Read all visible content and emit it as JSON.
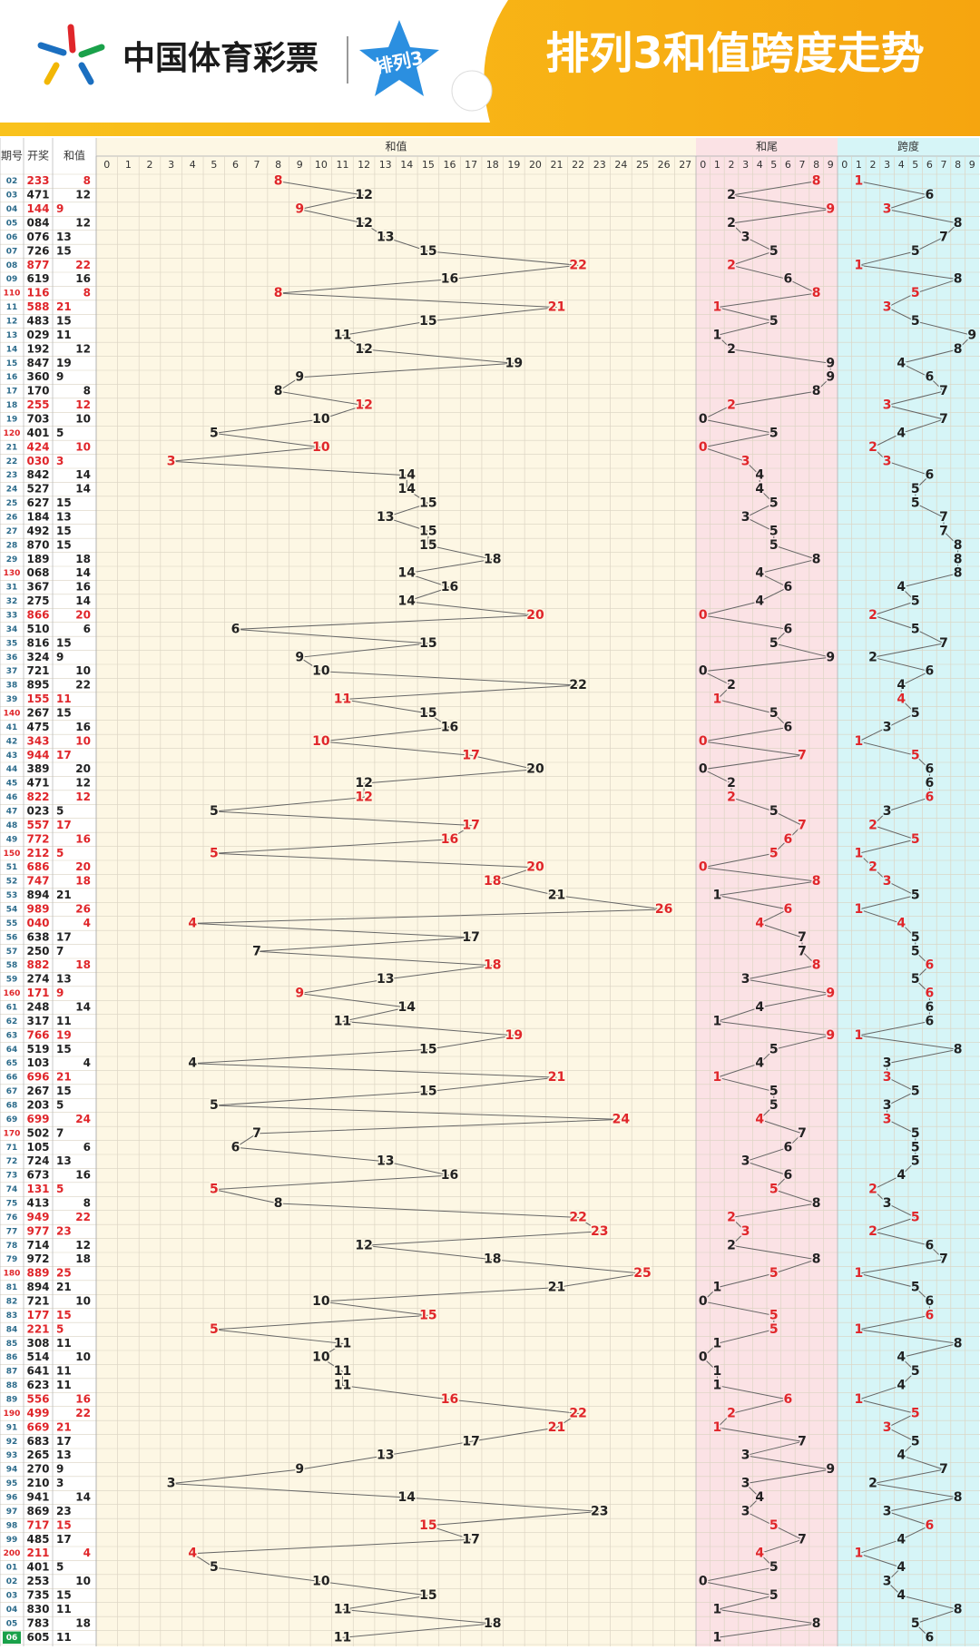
{
  "chart_data": {
    "type": "trend",
    "brand": "中国体育彩票",
    "badge": "排列3",
    "title": "排列3和值跨度走势",
    "column_headers": [
      "期号",
      "开奖",
      "和值"
    ],
    "categories": [
      "02",
      "03",
      "04",
      "05",
      "06",
      "07",
      "08",
      "09",
      "110",
      "11",
      "12",
      "13",
      "14",
      "15",
      "16",
      "17",
      "18",
      "19",
      "120",
      "21",
      "22",
      "23",
      "24",
      "25",
      "26",
      "27",
      "28",
      "29",
      "130",
      "31",
      "32",
      "33",
      "34",
      "35",
      "36",
      "37",
      "38",
      "39",
      "140",
      "41",
      "42",
      "43",
      "44",
      "45",
      "46",
      "47",
      "48",
      "49",
      "150",
      "51",
      "52",
      "53",
      "54",
      "55",
      "56",
      "57",
      "58",
      "59",
      "160",
      "61",
      "62",
      "63",
      "64",
      "65",
      "66",
      "67",
      "68",
      "69",
      "170",
      "71",
      "72",
      "73",
      "74",
      "75",
      "76",
      "77",
      "78",
      "79",
      "180",
      "81",
      "82",
      "83",
      "84",
      "85",
      "86",
      "87",
      "88",
      "89",
      "190",
      "91",
      "92",
      "93",
      "94",
      "95",
      "96",
      "97",
      "98",
      "99",
      "200",
      "01",
      "02",
      "03",
      "04",
      "05",
      "06"
    ],
    "draws": [
      "233",
      "471",
      "144",
      "084",
      "076",
      "726",
      "877",
      "619",
      "116",
      "588",
      "483",
      "029",
      "192",
      "847",
      "360",
      "170",
      "255",
      "703",
      "401",
      "424",
      "030",
      "842",
      "527",
      "627",
      "184",
      "492",
      "870",
      "189",
      "068",
      "367",
      "275",
      "866",
      "510",
      "816",
      "324",
      "721",
      "895",
      "155",
      "267",
      "475",
      "343",
      "944",
      "389",
      "471",
      "822",
      "023",
      "557",
      "772",
      "212",
      "686",
      "747",
      "894",
      "989",
      "040",
      "638",
      "250",
      "882",
      "274",
      "171",
      "248",
      "317",
      "766",
      "519",
      "103",
      "696",
      "267",
      "203",
      "699",
      "502",
      "105",
      "724",
      "673",
      "131",
      "413",
      "949",
      "977",
      "714",
      "972",
      "889",
      "894",
      "721",
      "177",
      "221",
      "308",
      "514",
      "641",
      "623",
      "556",
      "499",
      "669",
      "683",
      "265",
      "270",
      "210",
      "941",
      "869",
      "717",
      "485",
      "211",
      "401",
      "253",
      "735",
      "830",
      "783",
      "605"
    ],
    "row_colors": [
      "#e0262a",
      "#222222",
      "#e0262a",
      "#222222",
      "#222222",
      "#222222",
      "#e0262a",
      "#222222",
      "#e0262a",
      "#e0262a",
      "#222222",
      "#222222",
      "#222222",
      "#222222",
      "#222222",
      "#222222",
      "#e0262a",
      "#222222",
      "#222222",
      "#e0262a",
      "#e0262a",
      "#222222",
      "#222222",
      "#222222",
      "#222222",
      "#222222",
      "#222222",
      "#222222",
      "#222222",
      "#222222",
      "#222222",
      "#e0262a",
      "#222222",
      "#222222",
      "#222222",
      "#222222",
      "#222222",
      "#e0262a",
      "#222222",
      "#222222",
      "#e0262a",
      "#e0262a",
      "#222222",
      "#222222",
      "#e0262a",
      "#222222",
      "#e0262a",
      "#e0262a",
      "#e0262a",
      "#e0262a",
      "#e0262a",
      "#222222",
      "#e0262a",
      "#e0262a",
      "#222222",
      "#222222",
      "#e0262a",
      "#222222",
      "#e0262a",
      "#222222",
      "#222222",
      "#e0262a",
      "#222222",
      "#222222",
      "#e0262a",
      "#222222",
      "#222222",
      "#e0262a",
      "#222222",
      "#222222",
      "#222222",
      "#222222",
      "#e0262a",
      "#222222",
      "#e0262a",
      "#e0262a",
      "#222222",
      "#222222",
      "#e0262a",
      "#222222",
      "#222222",
      "#e0262a",
      "#e0262a",
      "#222222",
      "#222222",
      "#222222",
      "#222222",
      "#e0262a",
      "#e0262a",
      "#e0262a",
      "#222222",
      "#222222",
      "#222222",
      "#222222",
      "#222222",
      "#222222",
      "#e0262a",
      "#222222",
      "#e0262a",
      "#222222",
      "#222222",
      "#222222",
      "#222222",
      "#222222",
      "#222222"
    ],
    "series": [
      {
        "name": "和值",
        "background": "#fdf7e4",
        "ticks": [
          0,
          1,
          2,
          3,
          4,
          5,
          6,
          7,
          8,
          9,
          10,
          11,
          12,
          13,
          14,
          15,
          16,
          17,
          18,
          19,
          20,
          21,
          22,
          23,
          24,
          25,
          26,
          27
        ],
        "values": [
          8,
          12,
          9,
          12,
          13,
          15,
          22,
          16,
          8,
          21,
          15,
          11,
          12,
          19,
          9,
          8,
          12,
          10,
          5,
          10,
          3,
          14,
          14,
          15,
          13,
          15,
          15,
          18,
          14,
          16,
          14,
          20,
          6,
          15,
          9,
          10,
          22,
          11,
          15,
          16,
          10,
          17,
          20,
          12,
          12,
          5,
          17,
          16,
          5,
          20,
          18,
          21,
          26,
          4,
          17,
          7,
          18,
          13,
          9,
          14,
          11,
          19,
          15,
          4,
          21,
          15,
          5,
          24,
          7,
          6,
          13,
          16,
          5,
          8,
          22,
          23,
          12,
          18,
          25,
          21,
          10,
          15,
          5,
          11,
          10,
          11,
          11,
          16,
          22,
          21,
          17,
          13,
          9,
          3,
          14,
          23,
          15,
          17,
          4,
          5,
          10,
          15,
          11,
          18,
          11
        ]
      },
      {
        "name": "和尾",
        "background": "#fbe2e5",
        "ticks": [
          0,
          1,
          2,
          3,
          4,
          5,
          6,
          7,
          8,
          9
        ],
        "values": [
          8,
          2,
          9,
          2,
          3,
          5,
          2,
          6,
          8,
          1,
          5,
          1,
          2,
          9,
          9,
          8,
          2,
          0,
          5,
          0,
          3,
          4,
          4,
          5,
          3,
          5,
          5,
          8,
          4,
          6,
          4,
          0,
          6,
          5,
          9,
          0,
          2,
          1,
          5,
          6,
          0,
          7,
          0,
          2,
          2,
          5,
          7,
          6,
          5,
          0,
          8,
          1,
          6,
          4,
          7,
          7,
          8,
          3,
          9,
          4,
          1,
          9,
          5,
          4,
          1,
          5,
          5,
          4,
          7,
          6,
          3,
          6,
          5,
          8,
          2,
          3,
          2,
          8,
          5,
          1,
          0,
          5,
          5,
          1,
          0,
          1,
          1,
          6,
          2,
          1,
          7,
          3,
          9,
          3,
          4,
          3,
          5,
          7,
          4,
          5,
          0,
          5,
          1,
          8,
          1
        ]
      },
      {
        "name": "跨度",
        "background": "#d6f5f7",
        "ticks": [
          0,
          1,
          2,
          3,
          4,
          5,
          6,
          7,
          8,
          9
        ],
        "values": [
          1,
          6,
          3,
          8,
          7,
          5,
          1,
          8,
          5,
          3,
          5,
          9,
          8,
          4,
          6,
          7,
          3,
          7,
          4,
          2,
          3,
          6,
          5,
          5,
          7,
          7,
          8,
          8,
          8,
          4,
          5,
          2,
          5,
          7,
          2,
          6,
          4,
          4,
          5,
          3,
          1,
          5,
          6,
          6,
          6,
          3,
          2,
          5,
          1,
          2,
          3,
          5,
          1,
          4,
          5,
          5,
          6,
          5,
          6,
          6,
          6,
          1,
          8,
          3,
          3,
          5,
          3,
          3,
          5,
          5,
          5,
          4,
          2,
          3,
          5,
          2,
          6,
          7,
          1,
          5,
          6,
          6,
          1,
          8,
          4,
          5,
          4,
          1,
          5,
          3,
          5,
          4,
          7,
          2,
          8,
          3,
          6,
          4,
          1,
          4,
          3,
          4,
          8,
          5,
          6
        ]
      }
    ]
  }
}
